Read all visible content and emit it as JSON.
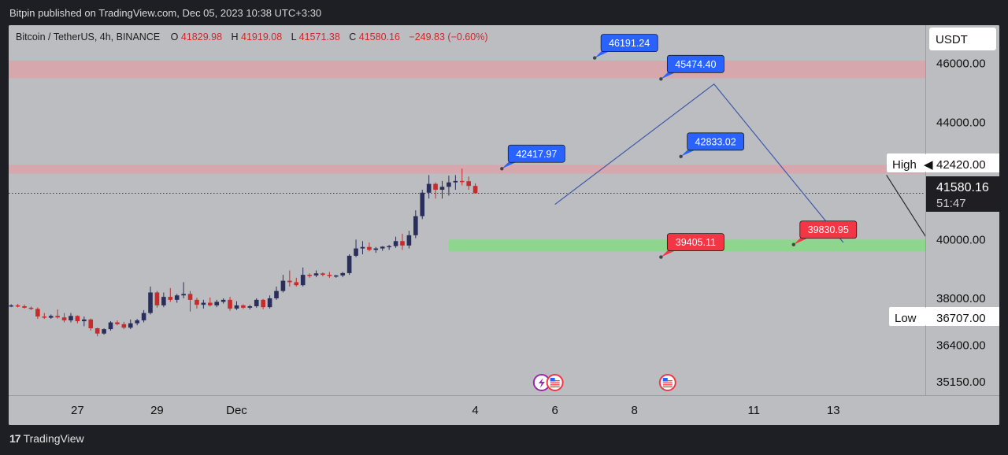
{
  "header": {
    "published": "Bitpin published on TradingView.com, Dec 05, 2023 10:38 UTC+3:30"
  },
  "footer": {
    "brand": "TradingView",
    "logo_icon": "tradingview-logo-icon"
  },
  "symbol": {
    "name": "Bitcoin / TetherUS, 4h, BINANCE",
    "o_label": "O",
    "o_value": "41829.98",
    "h_label": "H",
    "h_value": "41919.08",
    "l_label": "L",
    "l_value": "41571.38",
    "c_label": "C",
    "c_value": "41580.16",
    "change": "−249.83 (−0.60%)"
  },
  "currency_button": "USDT",
  "price_axis": {
    "ticks": [
      {
        "label": "46000.00",
        "value": 46000
      },
      {
        "label": "44000.00",
        "value": 44000
      },
      {
        "label": "40000.00",
        "value": 40000
      },
      {
        "label": "38000.00",
        "value": 38000
      },
      {
        "label": "36400.00",
        "value": 36400
      },
      {
        "label": "35150.00",
        "value": 35150
      }
    ],
    "high_label": "High",
    "high_value": "42420.00",
    "low_label": "Low",
    "low_value": "36707.00",
    "current_value": "41580.16",
    "countdown": "51:47"
  },
  "time_axis": {
    "labels": [
      "27",
      "29",
      "Dec",
      "4",
      "6",
      "8",
      "11",
      "13"
    ]
  },
  "colors": {
    "background": "#bcbdc1",
    "up": "#2a2e5c",
    "down": "#c92a2a",
    "resistance_zone": "#d6a7ac",
    "support_zone": "#8ed68e",
    "label_blue": "#2962ff",
    "label_red": "#f23645",
    "projection_line": "#3f5aa8",
    "alt_projection_line": "#2b2b2b"
  },
  "chart_data": {
    "type": "candlestick",
    "symbol": "Bitcoin / TetherUS",
    "interval": "4h",
    "exchange": "BINANCE",
    "ylim": [
      34700,
      47200
    ],
    "x_ticks": [
      {
        "label": "27",
        "idx": 10
      },
      {
        "label": "29",
        "idx": 22
      },
      {
        "label": "Dec",
        "idx": 34
      },
      {
        "label": "4",
        "idx": 70
      },
      {
        "label": "6",
        "idx": 82
      },
      {
        "label": "8",
        "idx": 94
      },
      {
        "label": "11",
        "idx": 112
      },
      {
        "label": "13",
        "idx": 124
      }
    ],
    "zones": [
      {
        "kind": "resistance",
        "from": 45500,
        "to": 46100
      },
      {
        "kind": "resistance",
        "from": 42250,
        "to": 42550
      },
      {
        "kind": "support",
        "from": 39600,
        "to": 40000,
        "start_idx": 66
      }
    ],
    "annotations": [
      {
        "text": "46191.24",
        "value": 46191.24,
        "idx": 88,
        "color": "blue"
      },
      {
        "text": "45474.40",
        "value": 45474.4,
        "idx": 98,
        "color": "blue"
      },
      {
        "text": "42417.97",
        "value": 42417.97,
        "idx": 74,
        "color": "blue"
      },
      {
        "text": "42833.02",
        "value": 42833.02,
        "idx": 101,
        "color": "blue"
      },
      {
        "text": "39405.11",
        "value": 39405.11,
        "idx": 98,
        "color": "red"
      },
      {
        "text": "39830.95",
        "value": 39830.95,
        "idx": 118,
        "color": "red"
      }
    ],
    "projection": [
      [
        82,
        41200
      ],
      [
        106,
        45300
      ],
      [
        125.5,
        39900
      ]
    ],
    "alt_projection": [
      [
        132,
        42200
      ],
      [
        138.5,
        39900
      ],
      [
        143.5,
        41100
      ]
    ],
    "event_icons": [
      {
        "idx": 80,
        "icon": "lightning-icon"
      },
      {
        "idx": 82,
        "icon": "us-flag-icon"
      },
      {
        "idx": 99,
        "icon": "us-flag-icon"
      }
    ],
    "candles": [
      {
        "idx": 0,
        "o": 37740,
        "h": 37800,
        "l": 37700,
        "c": 37760
      },
      {
        "idx": 1,
        "o": 37760,
        "h": 37810,
        "l": 37690,
        "c": 37730
      },
      {
        "idx": 2,
        "o": 37730,
        "h": 37790,
        "l": 37650,
        "c": 37680
      },
      {
        "idx": 3,
        "o": 37680,
        "h": 37720,
        "l": 37600,
        "c": 37640
      },
      {
        "idx": 4,
        "o": 37640,
        "h": 37690,
        "l": 37300,
        "c": 37380
      },
      {
        "idx": 5,
        "o": 37380,
        "h": 37500,
        "l": 37300,
        "c": 37340
      },
      {
        "idx": 6,
        "o": 37340,
        "h": 37450,
        "l": 37300,
        "c": 37400
      },
      {
        "idx": 7,
        "o": 37400,
        "h": 37620,
        "l": 37310,
        "c": 37350
      },
      {
        "idx": 8,
        "o": 37350,
        "h": 37500,
        "l": 37180,
        "c": 37250
      },
      {
        "idx": 9,
        "o": 37250,
        "h": 37500,
        "l": 37180,
        "c": 37400
      },
      {
        "idx": 10,
        "o": 37400,
        "h": 37420,
        "l": 37150,
        "c": 37220
      },
      {
        "idx": 11,
        "o": 37220,
        "h": 37380,
        "l": 37050,
        "c": 37280
      },
      {
        "idx": 12,
        "o": 37280,
        "h": 37310,
        "l": 36900,
        "c": 36980
      },
      {
        "idx": 13,
        "o": 36980,
        "h": 37000,
        "l": 36707,
        "c": 36800
      },
      {
        "idx": 14,
        "o": 36800,
        "h": 36980,
        "l": 36760,
        "c": 36950
      },
      {
        "idx": 15,
        "o": 36950,
        "h": 37220,
        "l": 36900,
        "c": 37180
      },
      {
        "idx": 16,
        "o": 37180,
        "h": 37250,
        "l": 37080,
        "c": 37120
      },
      {
        "idx": 17,
        "o": 37120,
        "h": 37200,
        "l": 36950,
        "c": 37000
      },
      {
        "idx": 18,
        "o": 37000,
        "h": 37280,
        "l": 36950,
        "c": 37150
      },
      {
        "idx": 19,
        "o": 37150,
        "h": 37300,
        "l": 37080,
        "c": 37250
      },
      {
        "idx": 20,
        "o": 37250,
        "h": 37600,
        "l": 37180,
        "c": 37500
      },
      {
        "idx": 21,
        "o": 37500,
        "h": 38400,
        "l": 37450,
        "c": 38200
      },
      {
        "idx": 22,
        "o": 38200,
        "h": 38250,
        "l": 37680,
        "c": 37760
      },
      {
        "idx": 23,
        "o": 37760,
        "h": 38200,
        "l": 37700,
        "c": 38050
      },
      {
        "idx": 24,
        "o": 38050,
        "h": 38350,
        "l": 37880,
        "c": 37950
      },
      {
        "idx": 25,
        "o": 37950,
        "h": 38150,
        "l": 37850,
        "c": 38100
      },
      {
        "idx": 26,
        "o": 38100,
        "h": 38550,
        "l": 38000,
        "c": 38150
      },
      {
        "idx": 27,
        "o": 38150,
        "h": 38250,
        "l": 37550,
        "c": 37950
      },
      {
        "idx": 28,
        "o": 37950,
        "h": 38020,
        "l": 37650,
        "c": 37780
      },
      {
        "idx": 29,
        "o": 37780,
        "h": 37950,
        "l": 37650,
        "c": 37850
      },
      {
        "idx": 30,
        "o": 37850,
        "h": 38030,
        "l": 37720,
        "c": 37760
      },
      {
        "idx": 31,
        "o": 37760,
        "h": 37950,
        "l": 37700,
        "c": 37880
      },
      {
        "idx": 32,
        "o": 37880,
        "h": 38000,
        "l": 37820,
        "c": 37950
      },
      {
        "idx": 33,
        "o": 37950,
        "h": 38050,
        "l": 37580,
        "c": 37650
      },
      {
        "idx": 34,
        "o": 37650,
        "h": 37900,
        "l": 37600,
        "c": 37760
      },
      {
        "idx": 35,
        "o": 37760,
        "h": 37800,
        "l": 37640,
        "c": 37680
      },
      {
        "idx": 36,
        "o": 37680,
        "h": 37780,
        "l": 37620,
        "c": 37730
      },
      {
        "idx": 37,
        "o": 37730,
        "h": 38000,
        "l": 37680,
        "c": 37950
      },
      {
        "idx": 38,
        "o": 37950,
        "h": 37980,
        "l": 37630,
        "c": 37700
      },
      {
        "idx": 39,
        "o": 37700,
        "h": 38100,
        "l": 37650,
        "c": 38000
      },
      {
        "idx": 40,
        "o": 38000,
        "h": 38400,
        "l": 37950,
        "c": 38250
      },
      {
        "idx": 41,
        "o": 38250,
        "h": 38800,
        "l": 38200,
        "c": 38600
      },
      {
        "idx": 42,
        "o": 38600,
        "h": 38950,
        "l": 38400,
        "c": 38550
      },
      {
        "idx": 43,
        "o": 38550,
        "h": 38700,
        "l": 38400,
        "c": 38450
      },
      {
        "idx": 44,
        "o": 38450,
        "h": 39050,
        "l": 38400,
        "c": 38800
      },
      {
        "idx": 45,
        "o": 38800,
        "h": 38850,
        "l": 38700,
        "c": 38780
      },
      {
        "idx": 46,
        "o": 38780,
        "h": 38950,
        "l": 38720,
        "c": 38850
      },
      {
        "idx": 47,
        "o": 38850,
        "h": 38880,
        "l": 38750,
        "c": 38800
      },
      {
        "idx": 48,
        "o": 38800,
        "h": 38900,
        "l": 38700,
        "c": 38760
      },
      {
        "idx": 49,
        "o": 38760,
        "h": 38800,
        "l": 38700,
        "c": 38780
      },
      {
        "idx": 50,
        "o": 38780,
        "h": 38900,
        "l": 38720,
        "c": 38860
      },
      {
        "idx": 51,
        "o": 38860,
        "h": 39500,
        "l": 38800,
        "c": 39450
      },
      {
        "idx": 52,
        "o": 39450,
        "h": 40000,
        "l": 39400,
        "c": 39700
      },
      {
        "idx": 53,
        "o": 39700,
        "h": 39950,
        "l": 39500,
        "c": 39750
      },
      {
        "idx": 54,
        "o": 39750,
        "h": 39900,
        "l": 39600,
        "c": 39650
      },
      {
        "idx": 55,
        "o": 39650,
        "h": 39750,
        "l": 39550,
        "c": 39700
      },
      {
        "idx": 56,
        "o": 39700,
        "h": 39780,
        "l": 39620,
        "c": 39760
      },
      {
        "idx": 57,
        "o": 39760,
        "h": 39820,
        "l": 39650,
        "c": 39780
      },
      {
        "idx": 58,
        "o": 39780,
        "h": 40100,
        "l": 39720,
        "c": 39950
      },
      {
        "idx": 59,
        "o": 39950,
        "h": 40200,
        "l": 39650,
        "c": 39800
      },
      {
        "idx": 60,
        "o": 39800,
        "h": 40300,
        "l": 39700,
        "c": 40150
      },
      {
        "idx": 61,
        "o": 40150,
        "h": 41000,
        "l": 40050,
        "c": 40800
      },
      {
        "idx": 62,
        "o": 40800,
        "h": 41700,
        "l": 40700,
        "c": 41600
      },
      {
        "idx": 63,
        "o": 41600,
        "h": 42200,
        "l": 41400,
        "c": 41900
      },
      {
        "idx": 64,
        "o": 41900,
        "h": 41950,
        "l": 41400,
        "c": 41700
      },
      {
        "idx": 65,
        "o": 41700,
        "h": 42000,
        "l": 41400,
        "c": 41800
      },
      {
        "idx": 66,
        "o": 41800,
        "h": 42180,
        "l": 41500,
        "c": 41950
      },
      {
        "idx": 67,
        "o": 41950,
        "h": 42200,
        "l": 41700,
        "c": 42000
      },
      {
        "idx": 68,
        "o": 42000,
        "h": 42420,
        "l": 41850,
        "c": 41990
      },
      {
        "idx": 69,
        "o": 41990,
        "h": 42150,
        "l": 41700,
        "c": 41829.98
      },
      {
        "idx": 70,
        "o": 41829.98,
        "h": 41919.08,
        "l": 41571.38,
        "c": 41580.16
      }
    ]
  }
}
